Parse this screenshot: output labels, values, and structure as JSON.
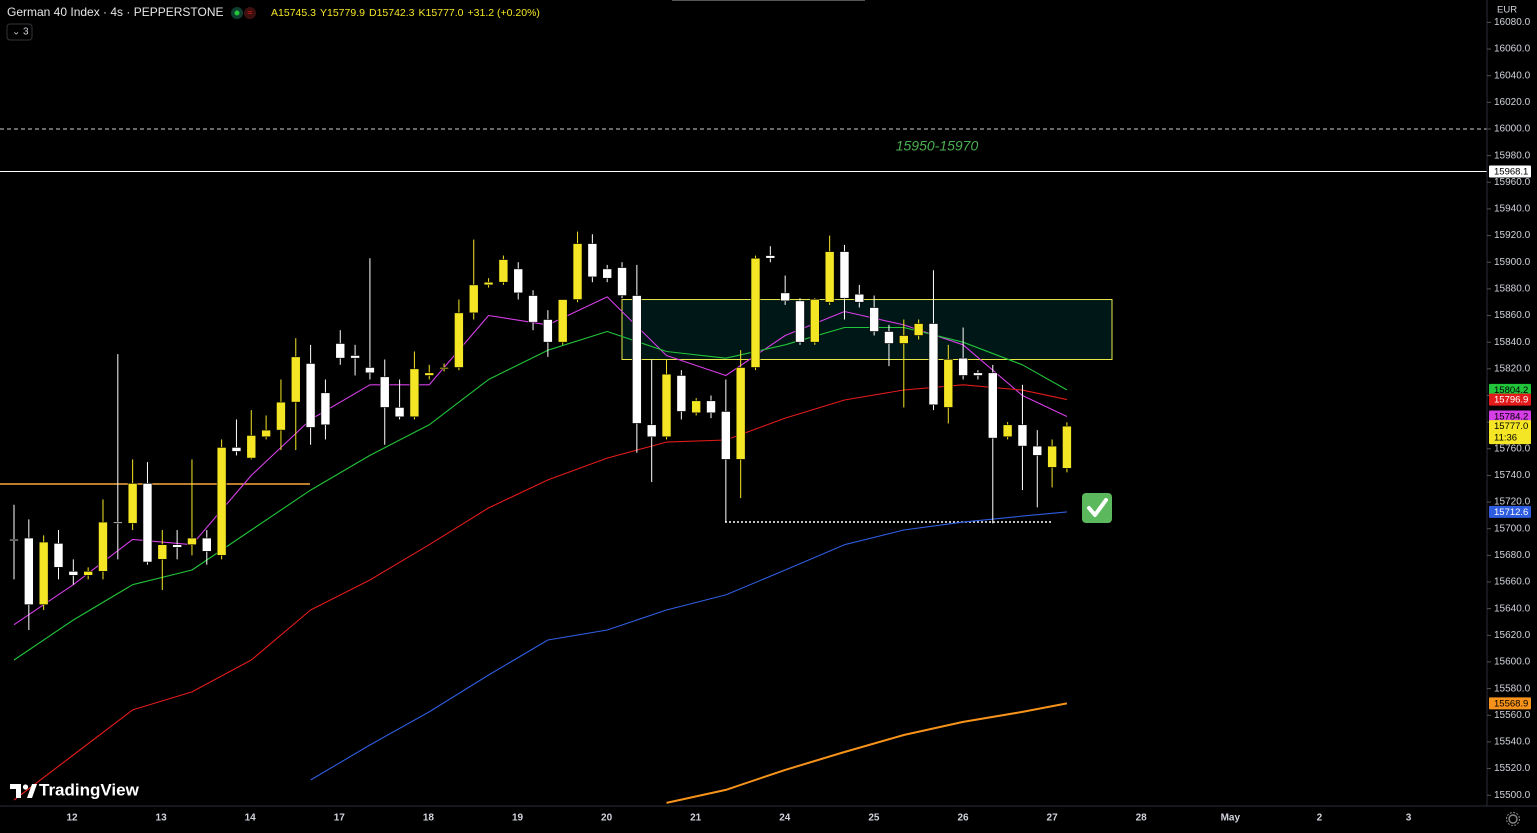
{
  "chart_data": {
    "type": "candlestick",
    "title": "German 40 Index · 4s · PEPPERSTONE",
    "ohlc_legend": [
      {
        "key": "A",
        "text": "15745.3"
      },
      {
        "key": "Y",
        "text": "15779.9"
      },
      {
        "key": "D",
        "text": "15742.3"
      },
      {
        "key": "K",
        "text": "15777.0"
      }
    ],
    "change": "+31.2 (+0.20%)",
    "indicator_badge": "3",
    "currency": "EUR",
    "watermark": "TradingView",
    "annotation": "15950-15970",
    "up_color": "#f5e625",
    "down_color": "#ffffff",
    "ylim": [
      15491.9,
      16096.8
    ],
    "yticks": [
      {
        "value": 16080,
        "label": "16080.0"
      },
      {
        "value": 16060,
        "label": "16060.0"
      },
      {
        "value": 16040,
        "label": "16040.0"
      },
      {
        "value": 16020,
        "label": "16020.0"
      },
      {
        "value": 16000,
        "label": "16000.0"
      },
      {
        "value": 15980,
        "label": "15980.0"
      },
      {
        "value": 15960,
        "label": "15960.0"
      },
      {
        "value": 15940,
        "label": "15940.0"
      },
      {
        "value": 15920,
        "label": "15920.0"
      },
      {
        "value": 15900,
        "label": "15900.0"
      },
      {
        "value": 15880,
        "label": "15880.0"
      },
      {
        "value": 15860,
        "label": "15860.0"
      },
      {
        "value": 15840,
        "label": "15840.0"
      },
      {
        "value": 15820,
        "label": "15820.0"
      },
      {
        "value": 15800,
        "label": "15800.0"
      },
      {
        "value": 15780,
        "label": "15780.0"
      },
      {
        "value": 15760,
        "label": "15760.0"
      },
      {
        "value": 15740,
        "label": "15740.0"
      },
      {
        "value": 15720,
        "label": "15720.0"
      },
      {
        "value": 15700,
        "label": "15700.0"
      },
      {
        "value": 15680,
        "label": "15680.0"
      },
      {
        "value": 15660,
        "label": "15660.0"
      },
      {
        "value": 15640,
        "label": "15640.0"
      },
      {
        "value": 15620,
        "label": "15620.0"
      },
      {
        "value": 15600,
        "label": "15600.0"
      },
      {
        "value": 15580,
        "label": "15580.0"
      },
      {
        "value": 15560,
        "label": "15560.0"
      },
      {
        "value": 15540,
        "label": "15540.0"
      },
      {
        "value": 15520,
        "label": "15520.0"
      },
      {
        "value": 15500,
        "label": "15500.0"
      }
    ],
    "date_labels": [
      "12",
      "13",
      "14",
      "17",
      "18",
      "19",
      "20",
      "21",
      "24",
      "25",
      "26",
      "27",
      "28",
      "May",
      "2",
      "3"
    ],
    "candles": {
      "open": [
        15692,
        15693,
        15643,
        15689,
        15668,
        15665,
        15668,
        15705,
        15704,
        15734,
        15677,
        15688,
        15688,
        15693,
        15680,
        15761,
        15753,
        15769,
        15774,
        15795,
        15824,
        15802,
        15839,
        15830,
        15821,
        15814,
        15791,
        15784,
        15815,
        15820,
        15821,
        15862,
        15883,
        15885,
        15895,
        15875,
        15857,
        15840,
        15872,
        15914,
        15895,
        15896,
        15875,
        15778,
        15769,
        15815,
        15787,
        15796,
        15788,
        15752,
        15821,
        15905,
        15877,
        15871,
        15840,
        15870,
        15908,
        15876,
        15866,
        15848,
        15839,
        15845,
        15854,
        15791,
        15828,
        15817,
        15817,
        15769,
        15778,
        15762,
        15746,
        15745.3
      ],
      "high": [
        15718,
        15707,
        15695,
        15699,
        15677,
        15671,
        15722,
        15831,
        15752,
        15750,
        15699,
        15699,
        15752,
        15699,
        15767,
        15782,
        15789,
        15785,
        15812,
        15843,
        15838,
        15812,
        15849,
        15838,
        15903,
        15827,
        15812,
        15833,
        15823,
        15824,
        15872,
        15917,
        15888,
        15905,
        15900,
        15879,
        15864,
        15872,
        15923,
        15921,
        15898,
        15900,
        15898,
        15827,
        15827,
        15819,
        15798,
        15800,
        15812,
        15834,
        15905,
        15912,
        15890,
        15873,
        15873,
        15920,
        15913,
        15883,
        15875,
        15853,
        15857,
        15857,
        15894,
        15838,
        15851,
        15819,
        15823,
        15780,
        15808,
        15774,
        15767,
        15779.9
      ],
      "low": [
        15662,
        15624,
        15639,
        15662,
        15658,
        15662,
        15662,
        15677,
        15699,
        15673,
        15654,
        15677,
        15680,
        15673,
        15677,
        15755,
        15752,
        15767,
        15759,
        15759,
        15763,
        15767,
        15823,
        15815,
        15812,
        15763,
        15782,
        15782,
        15812,
        15818,
        15819,
        15857,
        15881,
        15883,
        15872,
        15849,
        15829,
        15838,
        15870,
        15885,
        15885,
        15873,
        15757,
        15735,
        15767,
        15782,
        15785,
        15783,
        15705,
        15723,
        15819,
        15900,
        15868,
        15838,
        15838,
        15868,
        15857,
        15866,
        15845,
        15822,
        15791,
        15842,
        15789,
        15779,
        15812,
        15812,
        15704,
        15767,
        15729,
        15716,
        15731,
        15742.3
      ],
      "close": [
        15691,
        15643,
        15690,
        15671,
        15665,
        15668,
        15705,
        15704,
        15734,
        15675,
        15688,
        15686,
        15693,
        15683,
        15761,
        15758,
        15770,
        15774,
        15795,
        15829,
        15776,
        15778,
        15828,
        15828,
        15817,
        15791,
        15784,
        15820,
        15817,
        15821,
        15862,
        15883,
        15885,
        15902,
        15877,
        15855,
        15840,
        15872,
        15914,
        15889,
        15888,
        15875,
        15779,
        15769,
        15816,
        15788,
        15796,
        15787,
        15752,
        15821,
        15903,
        15903,
        15871,
        15840,
        15872,
        15908,
        15873,
        15870,
        15848,
        15839,
        15845,
        15854,
        15793,
        15827,
        15815,
        15815,
        15768,
        15778,
        15762,
        15755,
        15762,
        15777.0
      ]
    },
    "ma_index": [
      0,
      4,
      8,
      12,
      16,
      20,
      24,
      28,
      32,
      36,
      40,
      44,
      48,
      52,
      56,
      60,
      64,
      68,
      71
    ],
    "series": [
      {
        "color": "#d63ee8",
        "values": [
          15628,
          15658,
          15692,
          15688,
          15740,
          15782,
          15808,
          15808,
          15860,
          15853,
          15874,
          15830,
          15815,
          15845,
          15863,
          15853,
          15838,
          15800,
          15784.2
        ]
      },
      {
        "color": "#22c43a",
        "values": [
          15601.5,
          15631.5,
          15658,
          15669,
          15699,
          15729,
          15755,
          15778,
          15812,
          15834,
          15848,
          15833,
          15828,
          15838,
          15851,
          15851,
          15840,
          15823,
          15804.2
        ]
      },
      {
        "color": "#e31b1b",
        "values": [
          15496.4,
          15530.2,
          15564,
          15577.5,
          15601.5,
          15639,
          15661.5,
          15688,
          15715.6,
          15736.6,
          15753,
          15765,
          15766.6,
          15783,
          15796.6,
          15804.1,
          15808,
          15804,
          15796.9
        ]
      },
      {
        "color": "#2f5de0",
        "values": [
          null,
          null,
          null,
          null,
          null,
          15511.4,
          15537.7,
          15562.5,
          15590.2,
          15616.5,
          15624,
          15639,
          15650.3,
          15669,
          15688,
          15699,
          15705,
          15709.5,
          15712.6
        ]
      },
      {
        "color": "#f7931a",
        "values": [
          null,
          null,
          null,
          null,
          null,
          null,
          null,
          null,
          null,
          null,
          null,
          15494.2,
          15504,
          15519,
          15532.4,
          15545.2,
          15555,
          15562.5,
          15568.9
        ]
      }
    ],
    "hlines": [
      {
        "value": 16000,
        "style": "dashed",
        "color": "#d0d0d0"
      },
      {
        "value": 15968.1,
        "style": "solid",
        "color": "#ffffff"
      },
      {
        "value": 15733.6,
        "style": "segment",
        "color": "#f7a73a"
      },
      {
        "value": 15705,
        "style": "dotted",
        "color": "#ffffff"
      }
    ],
    "zone": {
      "top": 15872,
      "bottom": 15827,
      "color": "#e8e84a"
    },
    "price_badges": [
      {
        "value": 15968.1,
        "bg": "#ffffff",
        "fg": "#000000"
      },
      {
        "value": 15804.2,
        "bg": "#22c43a",
        "fg": "#000000"
      },
      {
        "value": 15796.9,
        "bg": "#e31b1b",
        "fg": "#ffffff"
      },
      {
        "value": 15784.2,
        "bg": "#d63ee8",
        "fg": "#000000"
      },
      {
        "value": 15777.0,
        "label": "15777.0",
        "sub": "11:36",
        "bg": "#f5e625",
        "fg": "#000000"
      },
      {
        "value": 15712.6,
        "bg": "#2f5de0",
        "fg": "#ffffff"
      },
      {
        "value": 15568.9,
        "bg": "#f7931a",
        "fg": "#000000"
      }
    ]
  }
}
